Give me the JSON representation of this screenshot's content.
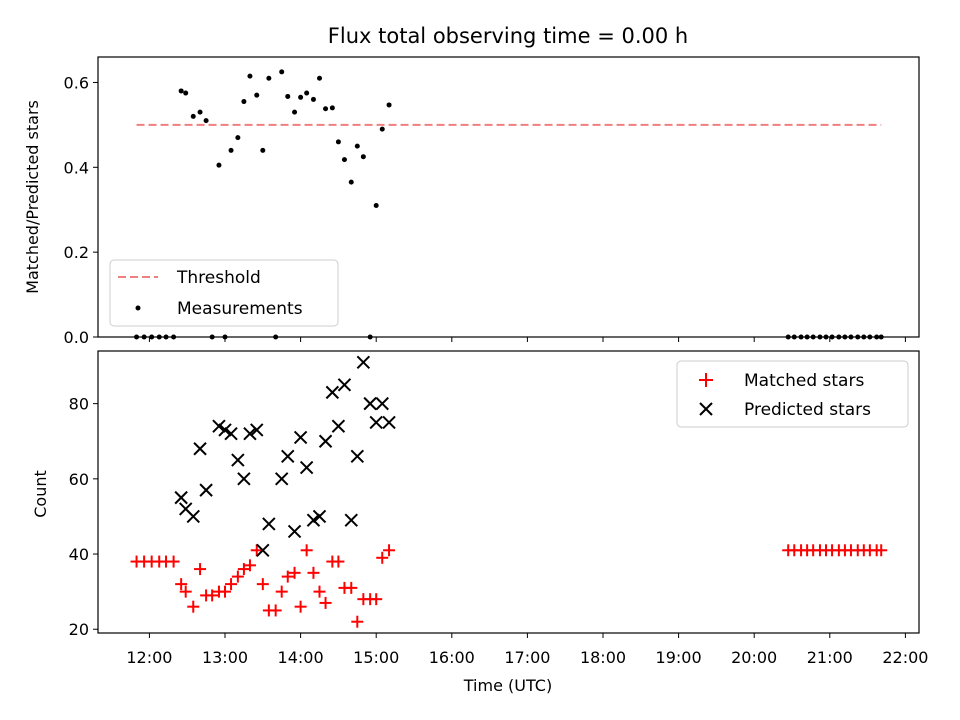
{
  "chart_data": [
    {
      "type": "scatter",
      "title": "Flux total observing time = 0.00 h",
      "xlabel": "",
      "ylabel": "Matched/Predicted stars",
      "xlim": [
        11.32,
        22.18
      ],
      "ylim": [
        0.0,
        0.66
      ],
      "yticks": [
        0.0,
        0.2,
        0.4,
        0.6
      ],
      "ytick_labels": [
        "0.0",
        "0.2",
        "0.4",
        "0.6"
      ],
      "legend_position": "lower-left",
      "threshold": {
        "name": "Threshold",
        "value": 0.5,
        "x_range": [
          11.83,
          21.68
        ],
        "color": "#f07f7f"
      },
      "series": [
        {
          "name": "Measurements",
          "color": "#000000",
          "x": [
            11.83,
            11.93,
            12.03,
            12.13,
            12.22,
            12.32,
            12.42,
            12.48,
            12.58,
            12.67,
            12.75,
            12.83,
            12.92,
            13.0,
            13.08,
            13.17,
            13.25,
            13.33,
            13.42,
            13.5,
            13.58,
            13.67,
            13.75,
            13.83,
            13.92,
            14.0,
            14.08,
            14.17,
            14.25,
            14.33,
            14.42,
            14.5,
            14.58,
            14.67,
            14.75,
            14.83,
            14.92,
            15.0,
            15.08,
            15.17,
            20.45,
            20.53,
            20.62,
            20.7,
            20.78,
            20.87,
            20.95,
            21.03,
            21.12,
            21.2,
            21.28,
            21.37,
            21.45,
            21.53,
            21.62,
            21.68
          ],
          "y": [
            0.0,
            0.0,
            0.0,
            0.0,
            0.0,
            0.0,
            0.58,
            0.575,
            0.52,
            0.53,
            0.51,
            0.0,
            0.405,
            0.0,
            0.44,
            0.47,
            0.555,
            0.615,
            0.57,
            0.44,
            0.61,
            0.0,
            0.625,
            0.567,
            0.53,
            0.565,
            0.575,
            0.56,
            0.61,
            0.538,
            0.54,
            0.46,
            0.418,
            0.365,
            0.45,
            0.425,
            0.0,
            0.31,
            0.49,
            0.547,
            0.0,
            0.0,
            0.0,
            0.0,
            0.0,
            0.0,
            0.0,
            0.0,
            0.0,
            0.0,
            0.0,
            0.0,
            0.0,
            0.0,
            0.0,
            0.0
          ]
        }
      ]
    },
    {
      "type": "scatter",
      "title": "",
      "xlabel": "Time (UTC)",
      "ylabel": "Count",
      "xlim": [
        11.32,
        22.18
      ],
      "ylim": [
        19.0,
        94.0
      ],
      "yticks": [
        20,
        40,
        60,
        80
      ],
      "ytick_labels": [
        "20",
        "40",
        "60",
        "80"
      ],
      "xticks": [
        12,
        13,
        14,
        15,
        16,
        17,
        18,
        19,
        20,
        21,
        22
      ],
      "xtick_labels": [
        "12:00",
        "13:00",
        "14:00",
        "15:00",
        "16:00",
        "17:00",
        "18:00",
        "19:00",
        "20:00",
        "21:00",
        "22:00"
      ],
      "legend_position": "upper-right",
      "series": [
        {
          "name": "Matched stars",
          "marker": "plus",
          "color": "#ff0000",
          "x": [
            11.83,
            11.93,
            12.03,
            12.13,
            12.22,
            12.32,
            12.42,
            12.48,
            12.58,
            12.67,
            12.75,
            12.83,
            12.92,
            13.0,
            13.08,
            13.17,
            13.25,
            13.33,
            13.42,
            13.5,
            13.58,
            13.67,
            13.75,
            13.83,
            13.92,
            14.0,
            14.08,
            14.17,
            14.25,
            14.33,
            14.42,
            14.5,
            14.58,
            14.67,
            14.75,
            14.83,
            14.92,
            15.0,
            15.08,
            15.17,
            20.45,
            20.53,
            20.62,
            20.7,
            20.78,
            20.87,
            20.95,
            21.03,
            21.12,
            21.2,
            21.28,
            21.37,
            21.45,
            21.53,
            21.62,
            21.68
          ],
          "y": [
            38,
            38,
            38,
            38,
            38,
            38,
            32,
            30,
            26,
            36,
            29,
            29,
            30,
            30,
            32,
            34,
            36,
            37,
            41,
            32,
            25,
            25,
            30,
            34,
            35,
            26,
            41,
            35,
            30,
            27,
            38,
            38,
            31,
            31,
            22,
            28,
            28,
            28,
            39,
            41,
            41,
            41,
            41,
            41,
            41,
            41,
            41,
            41,
            41,
            41,
            41,
            41,
            41,
            41,
            41,
            41
          ]
        },
        {
          "name": "Predicted stars",
          "marker": "x",
          "color": "#000000",
          "x": [
            12.42,
            12.48,
            12.58,
            12.67,
            12.75,
            12.92,
            13.0,
            13.08,
            13.17,
            13.25,
            13.33,
            13.42,
            13.5,
            13.58,
            13.75,
            13.83,
            13.92,
            14.0,
            14.08,
            14.17,
            14.25,
            14.33,
            14.42,
            14.5,
            14.58,
            14.67,
            14.75,
            14.83,
            14.92,
            15.0,
            15.08,
            15.17
          ],
          "y": [
            55,
            52,
            50,
            68,
            57,
            74,
            73,
            72,
            65,
            60,
            72,
            73,
            41,
            48,
            60,
            66,
            46,
            71,
            63,
            49,
            50,
            70,
            83,
            74,
            85,
            49,
            66,
            91,
            80,
            75,
            80,
            75
          ]
        }
      ]
    }
  ]
}
